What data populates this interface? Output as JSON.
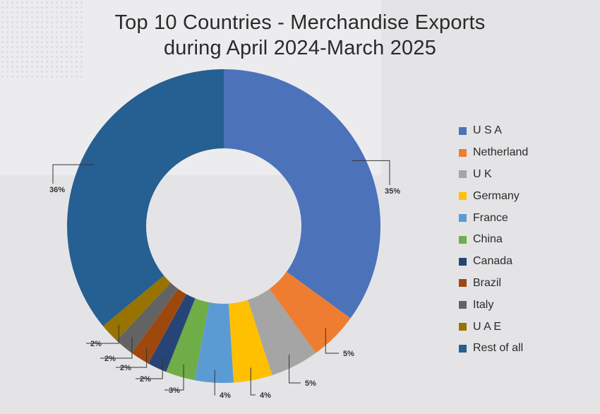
{
  "chart_data": {
    "type": "pie",
    "style": "donut",
    "title_lines": [
      "Top 10 Countries - Merchandise Exports",
      "during April 2024-March 2025"
    ],
    "categories": [
      "U S A",
      "Netherland",
      "U K",
      "Germany",
      "France",
      "China",
      "Canada",
      "Brazil",
      "Italy",
      "U A E",
      "Rest of all"
    ],
    "values": [
      35,
      5,
      5,
      4,
      4,
      3,
      2,
      2,
      2,
      2,
      36
    ],
    "labels": [
      "35%",
      "5%",
      "5%",
      "4%",
      "4%",
      "3%",
      "2%",
      "2%",
      "2%",
      "2%",
      "36%"
    ],
    "colors": [
      "#4c72ba",
      "#ee7d31",
      "#a5a5a5",
      "#fec000",
      "#5b9bd4",
      "#6fad46",
      "#264478",
      "#9e480e",
      "#636363",
      "#987300",
      "#265f91"
    ],
    "legend_position": "right"
  }
}
